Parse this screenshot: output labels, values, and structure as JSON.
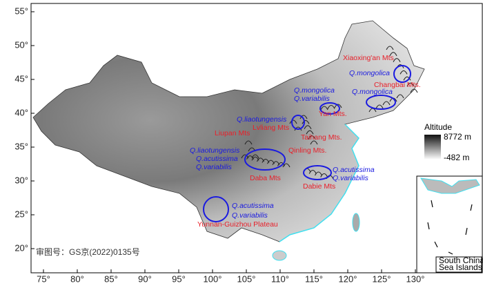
{
  "map": {
    "lat_labels": [
      "55°",
      "50°",
      "45°",
      "40°",
      "35°",
      "30°",
      "25°",
      "20°"
    ],
    "lon_labels": [
      "75°",
      "80°",
      "85°",
      "90°",
      "95°",
      "100°",
      "105°",
      "110°",
      "115°",
      "120°",
      "125°",
      "130°"
    ],
    "mountains": [
      "Xiaoxing'an Mts",
      "Changbai Mts.",
      "Yan Mts.",
      "Lvliang Mts",
      "Liupan Mts",
      "Taihang Mts.",
      "Qinling Mts.",
      "Daba Mts",
      "Dabie Mts",
      "Yunnan-Guizhou Plateau"
    ],
    "species": [
      "Q.mongolica",
      "Q.mongolica",
      "Q.variabilis",
      "Q.mongolica",
      "Q.liaotungensis",
      "Q.liaotungensis",
      "Q.acutissima",
      "Q.variabilis",
      "Q.acutissima",
      "Q.variabilis",
      "Q.acutissima",
      "Q.variabilis"
    ],
    "legend": {
      "title": "Altitude",
      "max": "8772 m",
      "min": "-482 m"
    },
    "inset": {
      "line1": "South China",
      "line2": "Sea Islands"
    },
    "approval": "审图号：GS京(2022)0135号"
  }
}
